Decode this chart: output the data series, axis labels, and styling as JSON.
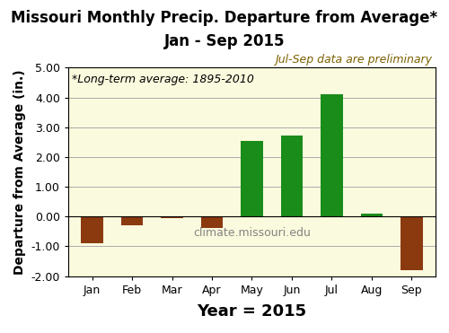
{
  "categories": [
    "Jan",
    "Feb",
    "Mar",
    "Apr",
    "May",
    "Jun",
    "Jul",
    "Aug",
    "Sep"
  ],
  "values": [
    -0.9,
    -0.28,
    -0.05,
    -0.38,
    2.55,
    2.72,
    4.1,
    0.1,
    -1.8
  ],
  "bar_color_positive": "#1A8C1A",
  "bar_color_negative": "#8B3A10",
  "background_color": "#FAFADE",
  "fig_background": "#FFFFFF",
  "title_line1": "Missouri Monthly Precip. Departure from Average*",
  "title_line2": "Jan - Sep 2015",
  "ylabel": "Departure from Average (in.)",
  "xlabel": "Year = 2015",
  "ylim": [
    -2.0,
    5.0
  ],
  "yticks": [
    -2.0,
    -1.0,
    0.0,
    1.0,
    2.0,
    3.0,
    4.0,
    5.0
  ],
  "annotation_left": "*Long-term average: 1895-2010",
  "annotation_right": "Jul-Sep data are preliminary",
  "watermark": "climate.missouri.edu",
  "title_fontsize": 12,
  "ylabel_fontsize": 10,
  "xlabel_fontsize": 13,
  "tick_fontsize": 9,
  "annotation_fontsize": 9,
  "watermark_fontsize": 9
}
